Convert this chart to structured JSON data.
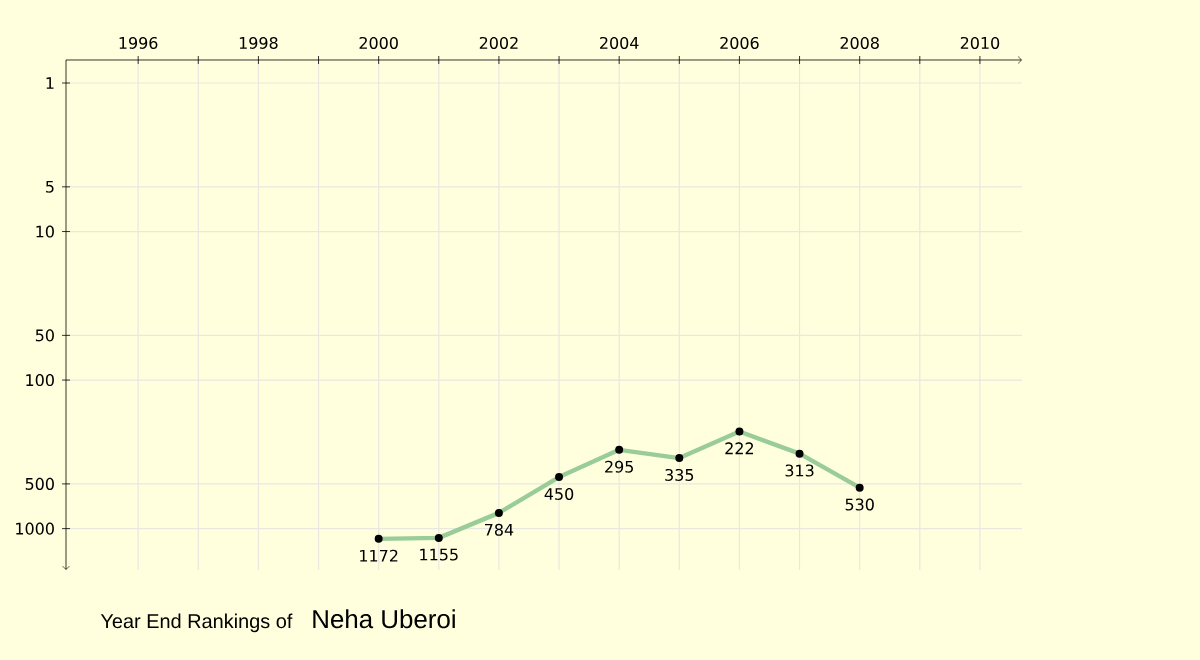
{
  "chart_data": {
    "type": "line",
    "title": "Year End Rankings of",
    "subtitle": "Neha Uberoi",
    "x": [
      2000,
      2001,
      2002,
      2003,
      2004,
      2005,
      2006,
      2007,
      2008
    ],
    "series": [
      {
        "color": "#99cc99",
        "values": [
          1172,
          1155,
          784,
          450,
          295,
          335,
          222,
          313,
          530
        ]
      }
    ],
    "xlim": [
      1994.8,
      2010.7
    ],
    "ylim": [
      1900,
      0.7
    ],
    "log": "y",
    "xticks": [
      1996,
      {
        "value": 1997,
        "label": null
      },
      1998,
      {
        "value": 1999,
        "label": null
      },
      2000,
      {
        "value": 2001,
        "label": null
      },
      2002,
      {
        "value": 2003,
        "label": null
      },
      2004,
      {
        "value": 2005,
        "label": null
      },
      2006,
      {
        "value": 2007,
        "label": null
      },
      2008,
      {
        "value": 2009,
        "label": null
      },
      2010
    ],
    "yticks": [
      1,
      5,
      10,
      50,
      100,
      500,
      1000
    ],
    "grid": true,
    "data_labels": true,
    "marker": "circle",
    "line_style": "solid"
  }
}
